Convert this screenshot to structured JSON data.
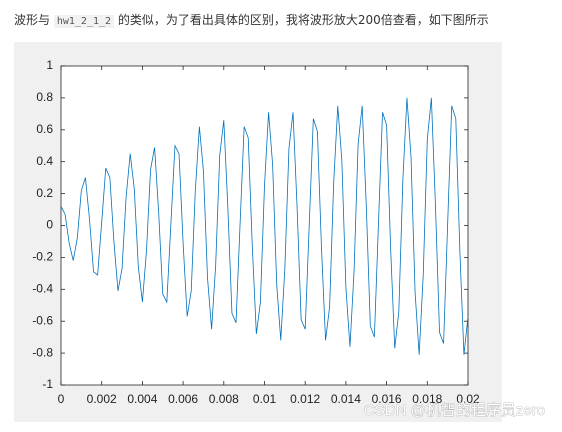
{
  "intro": {
    "before": "波形与 ",
    "code": "hw1_2_1_2",
    "after": " 的类似，为了看出具体的区别，我将波形放大200倍查看，如下图所示"
  },
  "chart_data": {
    "type": "line",
    "x": [
      0,
      0.0002,
      0.0004,
      0.0006,
      0.0008,
      0.001,
      0.0012,
      0.0014,
      0.0016,
      0.0018,
      0.002,
      0.0022,
      0.0024,
      0.0026,
      0.0028,
      0.003,
      0.0032,
      0.0034,
      0.0036,
      0.0038,
      0.004,
      0.0042,
      0.0044,
      0.0046,
      0.0048,
      0.005,
      0.0052,
      0.0054,
      0.0056,
      0.0058,
      0.006,
      0.0062,
      0.0064,
      0.0066,
      0.0068,
      0.007,
      0.0072,
      0.0074,
      0.0076,
      0.0078,
      0.008,
      0.0082,
      0.0084,
      0.0086,
      0.0088,
      0.009,
      0.0092,
      0.0094,
      0.0096,
      0.0098,
      0.01,
      0.0102,
      0.0104,
      0.0106,
      0.0108,
      0.011,
      0.0112,
      0.0114,
      0.0116,
      0.0118,
      0.012,
      0.0122,
      0.0124,
      0.0126,
      0.0128,
      0.013,
      0.0132,
      0.0134,
      0.0136,
      0.0138,
      0.014,
      0.0142,
      0.0144,
      0.0146,
      0.0148,
      0.015,
      0.0152,
      0.0154,
      0.0156,
      0.0158,
      0.016,
      0.0162,
      0.0164,
      0.0166,
      0.0168,
      0.017,
      0.0172,
      0.0174,
      0.0176,
      0.0178,
      0.018,
      0.0182,
      0.0184,
      0.0186,
      0.0188,
      0.019,
      0.0192,
      0.0194,
      0.0196,
      0.0198,
      0.02
    ],
    "series": [
      {
        "color": "#0072bd",
        "values": [
          0.12,
          0.07,
          -0.11,
          -0.22,
          -0.08,
          0.22,
          0.3,
          0.04,
          -0.29,
          -0.31,
          0.02,
          0.36,
          0.3,
          -0.1,
          -0.41,
          -0.27,
          0.18,
          0.45,
          0.23,
          -0.26,
          -0.48,
          -0.16,
          0.35,
          0.49,
          0.08,
          -0.43,
          -0.48,
          0.01,
          0.5,
          0.45,
          -0.11,
          -0.57,
          -0.41,
          0.22,
          0.62,
          0.34,
          -0.33,
          -0.65,
          -0.25,
          0.44,
          0.66,
          0.11,
          -0.55,
          -0.61,
          0.01,
          0.62,
          0.55,
          -0.13,
          -0.68,
          -0.48,
          0.25,
          0.71,
          0.38,
          -0.37,
          -0.72,
          -0.27,
          0.48,
          0.71,
          0.12,
          -0.59,
          -0.65,
          0.01,
          0.67,
          0.59,
          -0.14,
          -0.72,
          -0.51,
          0.27,
          0.75,
          0.41,
          -0.39,
          -0.76,
          -0.29,
          0.51,
          0.75,
          0.13,
          -0.63,
          -0.7,
          0.01,
          0.71,
          0.63,
          -0.15,
          -0.77,
          -0.54,
          0.29,
          0.8,
          0.43,
          -0.42,
          -0.81,
          -0.31,
          0.54,
          0.8,
          0.13,
          -0.67,
          -0.74,
          0.01,
          0.75,
          0.67,
          -0.16,
          -0.81,
          -0.57
        ]
      }
    ],
    "xlim": [
      0,
      0.02
    ],
    "xticks": [
      0,
      0.002,
      0.004,
      0.006,
      0.008,
      0.01,
      0.012,
      0.014,
      0.016,
      0.018,
      0.02
    ],
    "ylim": [
      -1,
      1
    ],
    "yticks": [
      -1,
      -0.8,
      -0.6,
      -0.4,
      -0.2,
      0,
      0.2,
      0.4,
      0.6,
      0.8,
      1
    ]
  },
  "watermark": "CSDN @机智的程序员zero"
}
